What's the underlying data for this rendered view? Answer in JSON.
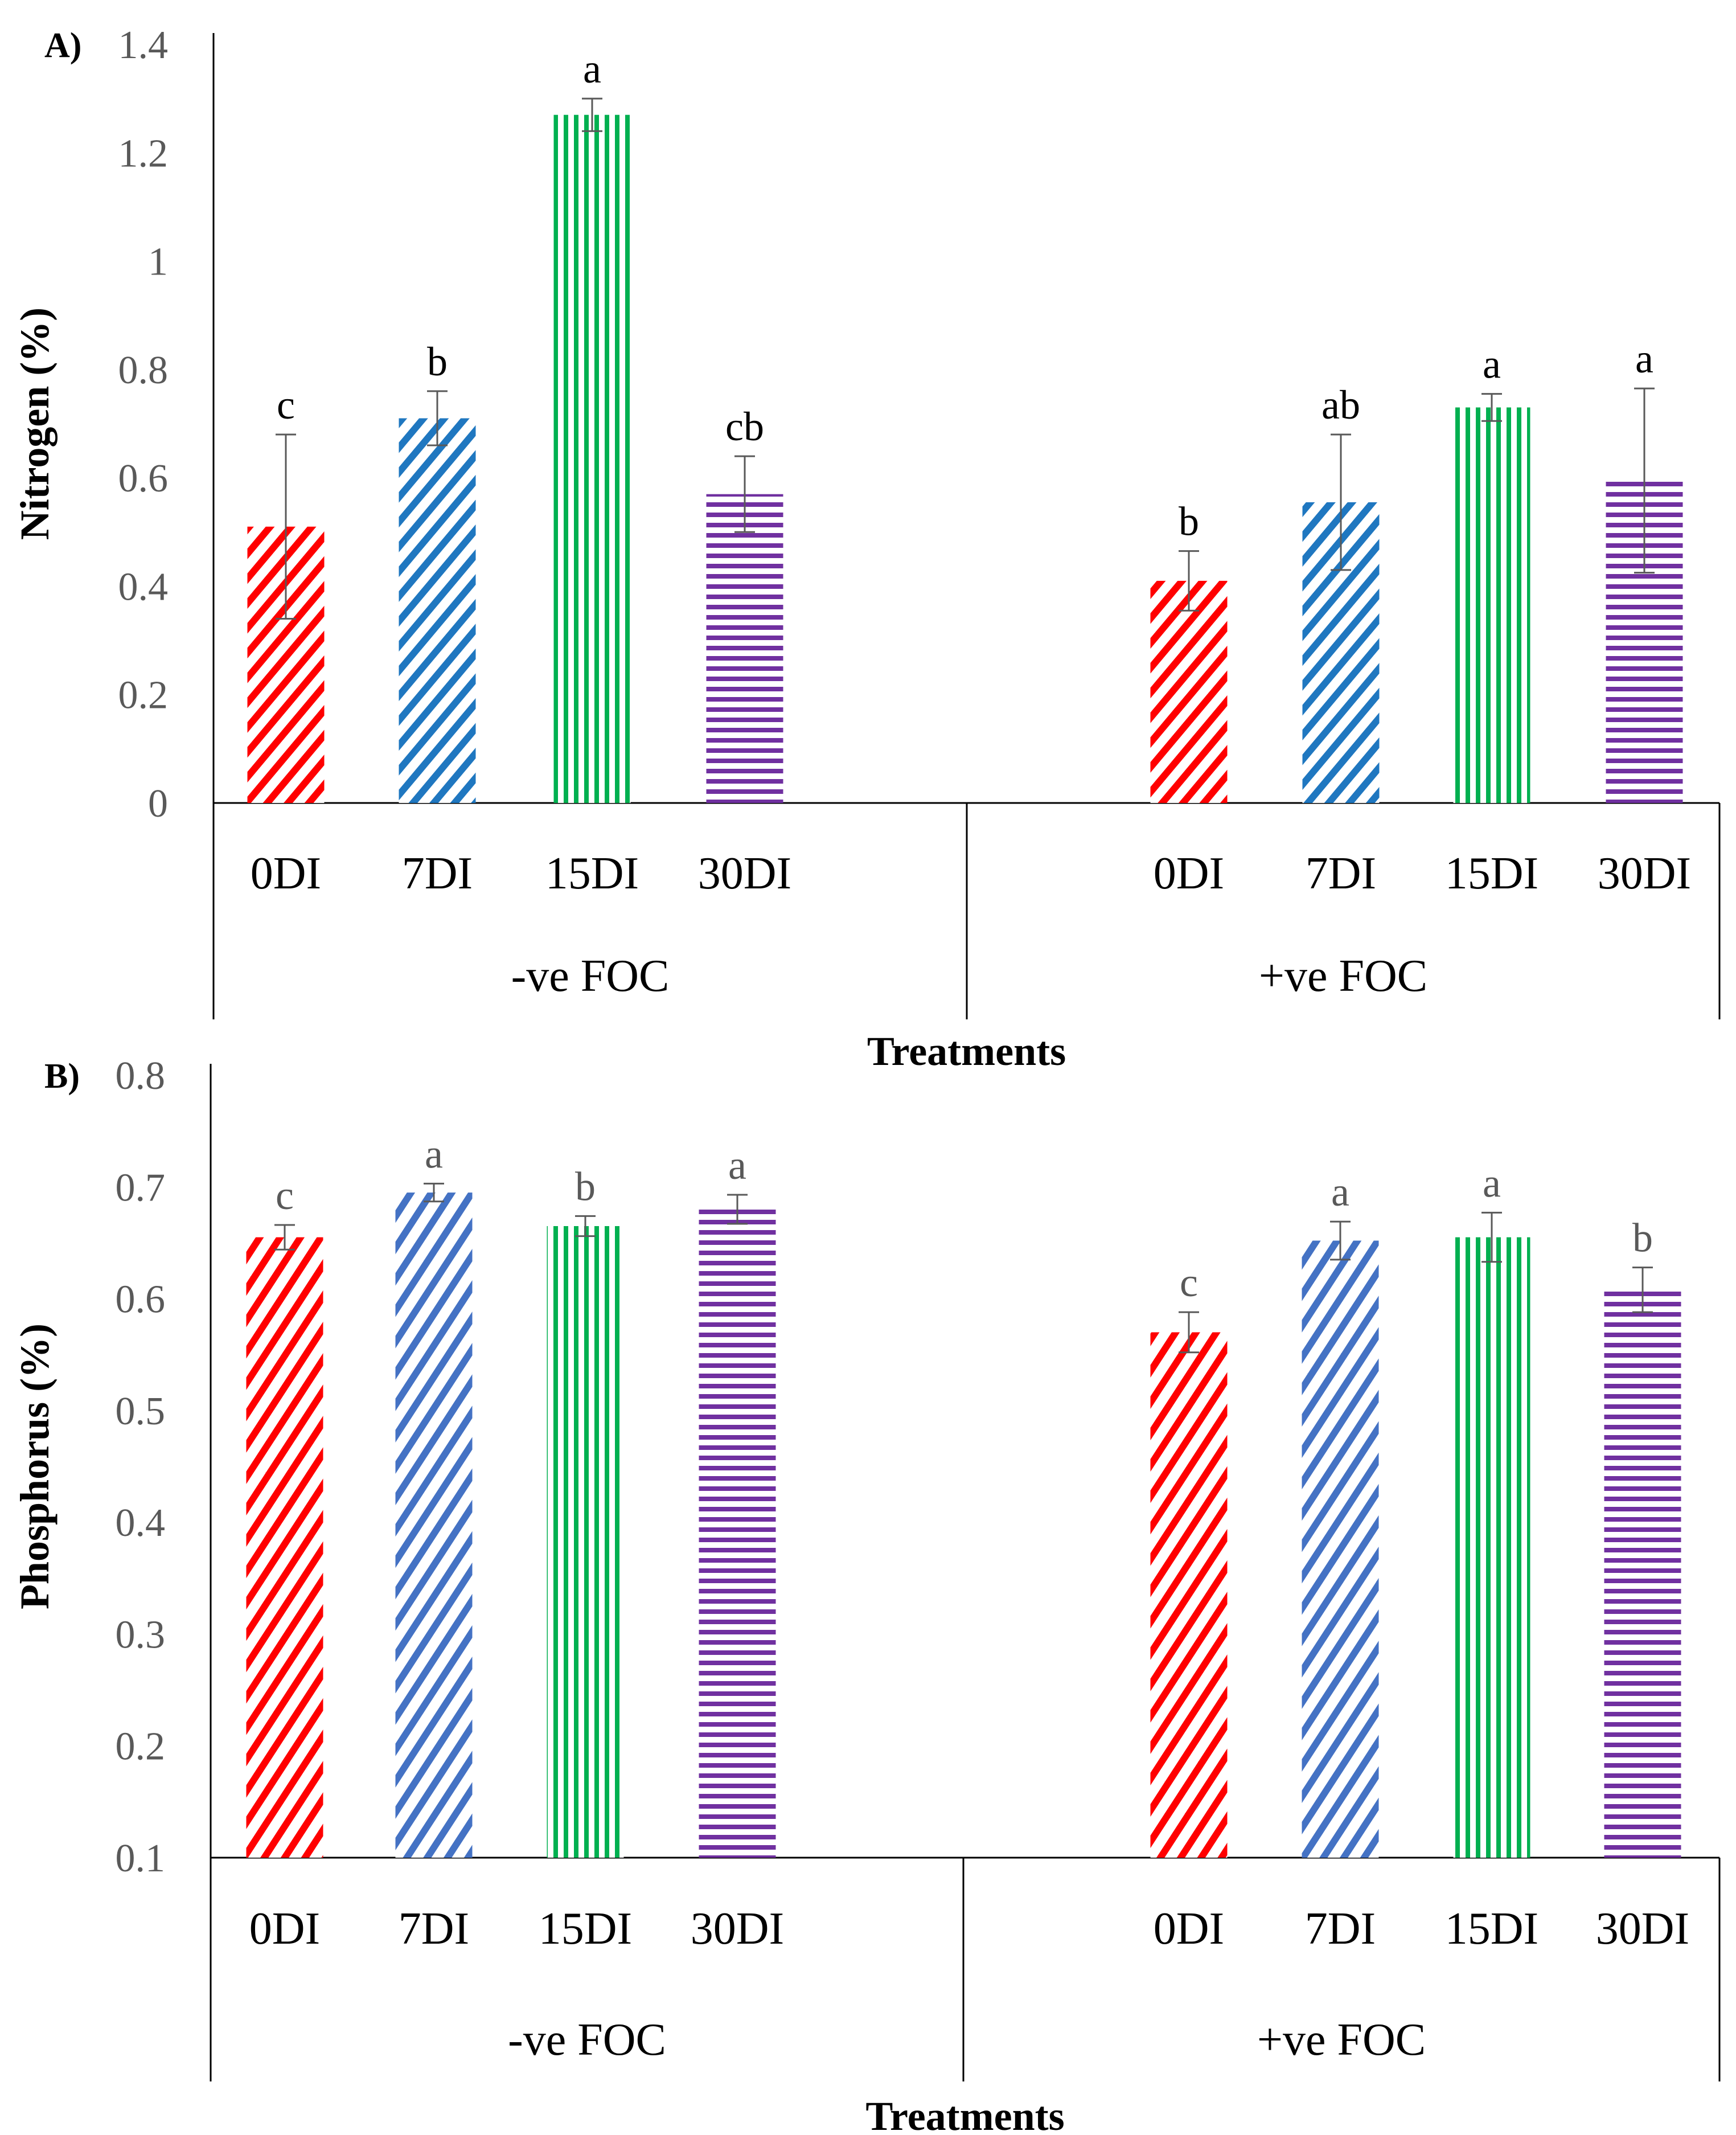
{
  "chart_data": [
    {
      "type": "bar",
      "panel_label": "A)",
      "ylabel": "Nitrogen (%)",
      "xlabel": "Treatments",
      "ylim": [
        0,
        1.4
      ],
      "ytick_step": 0.2,
      "yticks": [
        "0",
        "0.2",
        "0.4",
        "0.6",
        "0.8",
        "1",
        "1.2",
        "1.4"
      ],
      "groups": [
        {
          "label": "-ve FOC",
          "categories": [
            "0DI",
            "7DI",
            "15DI",
            "30DI"
          ],
          "values": [
            0.51,
            0.71,
            1.27,
            0.57
          ],
          "errors": [
            0.17,
            0.05,
            0.03,
            0.07
          ],
          "letters": [
            "c",
            "b",
            "a",
            "cb"
          ]
        },
        {
          "label": "+ve FOC",
          "categories": [
            "0DI",
            "7DI",
            "15DI",
            "30DI"
          ],
          "values": [
            0.41,
            0.555,
            0.73,
            0.595
          ],
          "errors": [
            0.055,
            0.125,
            0.025,
            0.17
          ],
          "letters": [
            "b",
            "ab",
            "a",
            "a"
          ]
        }
      ]
    },
    {
      "type": "bar",
      "panel_label": "B)",
      "ylabel": "Phosphorus (%)",
      "xlabel": "Treatments",
      "ylim": [
        0.1,
        0.8
      ],
      "ytick_step": 0.1,
      "yticks": [
        "0.1",
        "0.2",
        "0.3",
        "0.4",
        "0.5",
        "0.6",
        "0.7",
        "0.8"
      ],
      "groups": [
        {
          "label": "-ve FOC",
          "categories": [
            "0DI",
            "7DI",
            "15DI",
            "30DI"
          ],
          "values": [
            0.655,
            0.695,
            0.665,
            0.68
          ],
          "errors": [
            0.011,
            0.008,
            0.009,
            0.013
          ],
          "letters": [
            "c",
            "a",
            "b",
            "a"
          ]
        },
        {
          "label": "+ve FOC",
          "categories": [
            "0DI",
            "7DI",
            "15DI",
            "30DI"
          ],
          "values": [
            0.57,
            0.652,
            0.655,
            0.608
          ],
          "errors": [
            0.018,
            0.017,
            0.022,
            0.02
          ],
          "letters": [
            "c",
            "a",
            "a",
            "b"
          ]
        }
      ]
    }
  ],
  "colors": {
    "0DI": "#ff0000",
    "7DI_A": "#1f77c0",
    "7DI_B": "#4472c4",
    "15DI": "#00b050",
    "30DI": "#7030a0",
    "axis": "#000000",
    "errorbar": "#595959"
  }
}
